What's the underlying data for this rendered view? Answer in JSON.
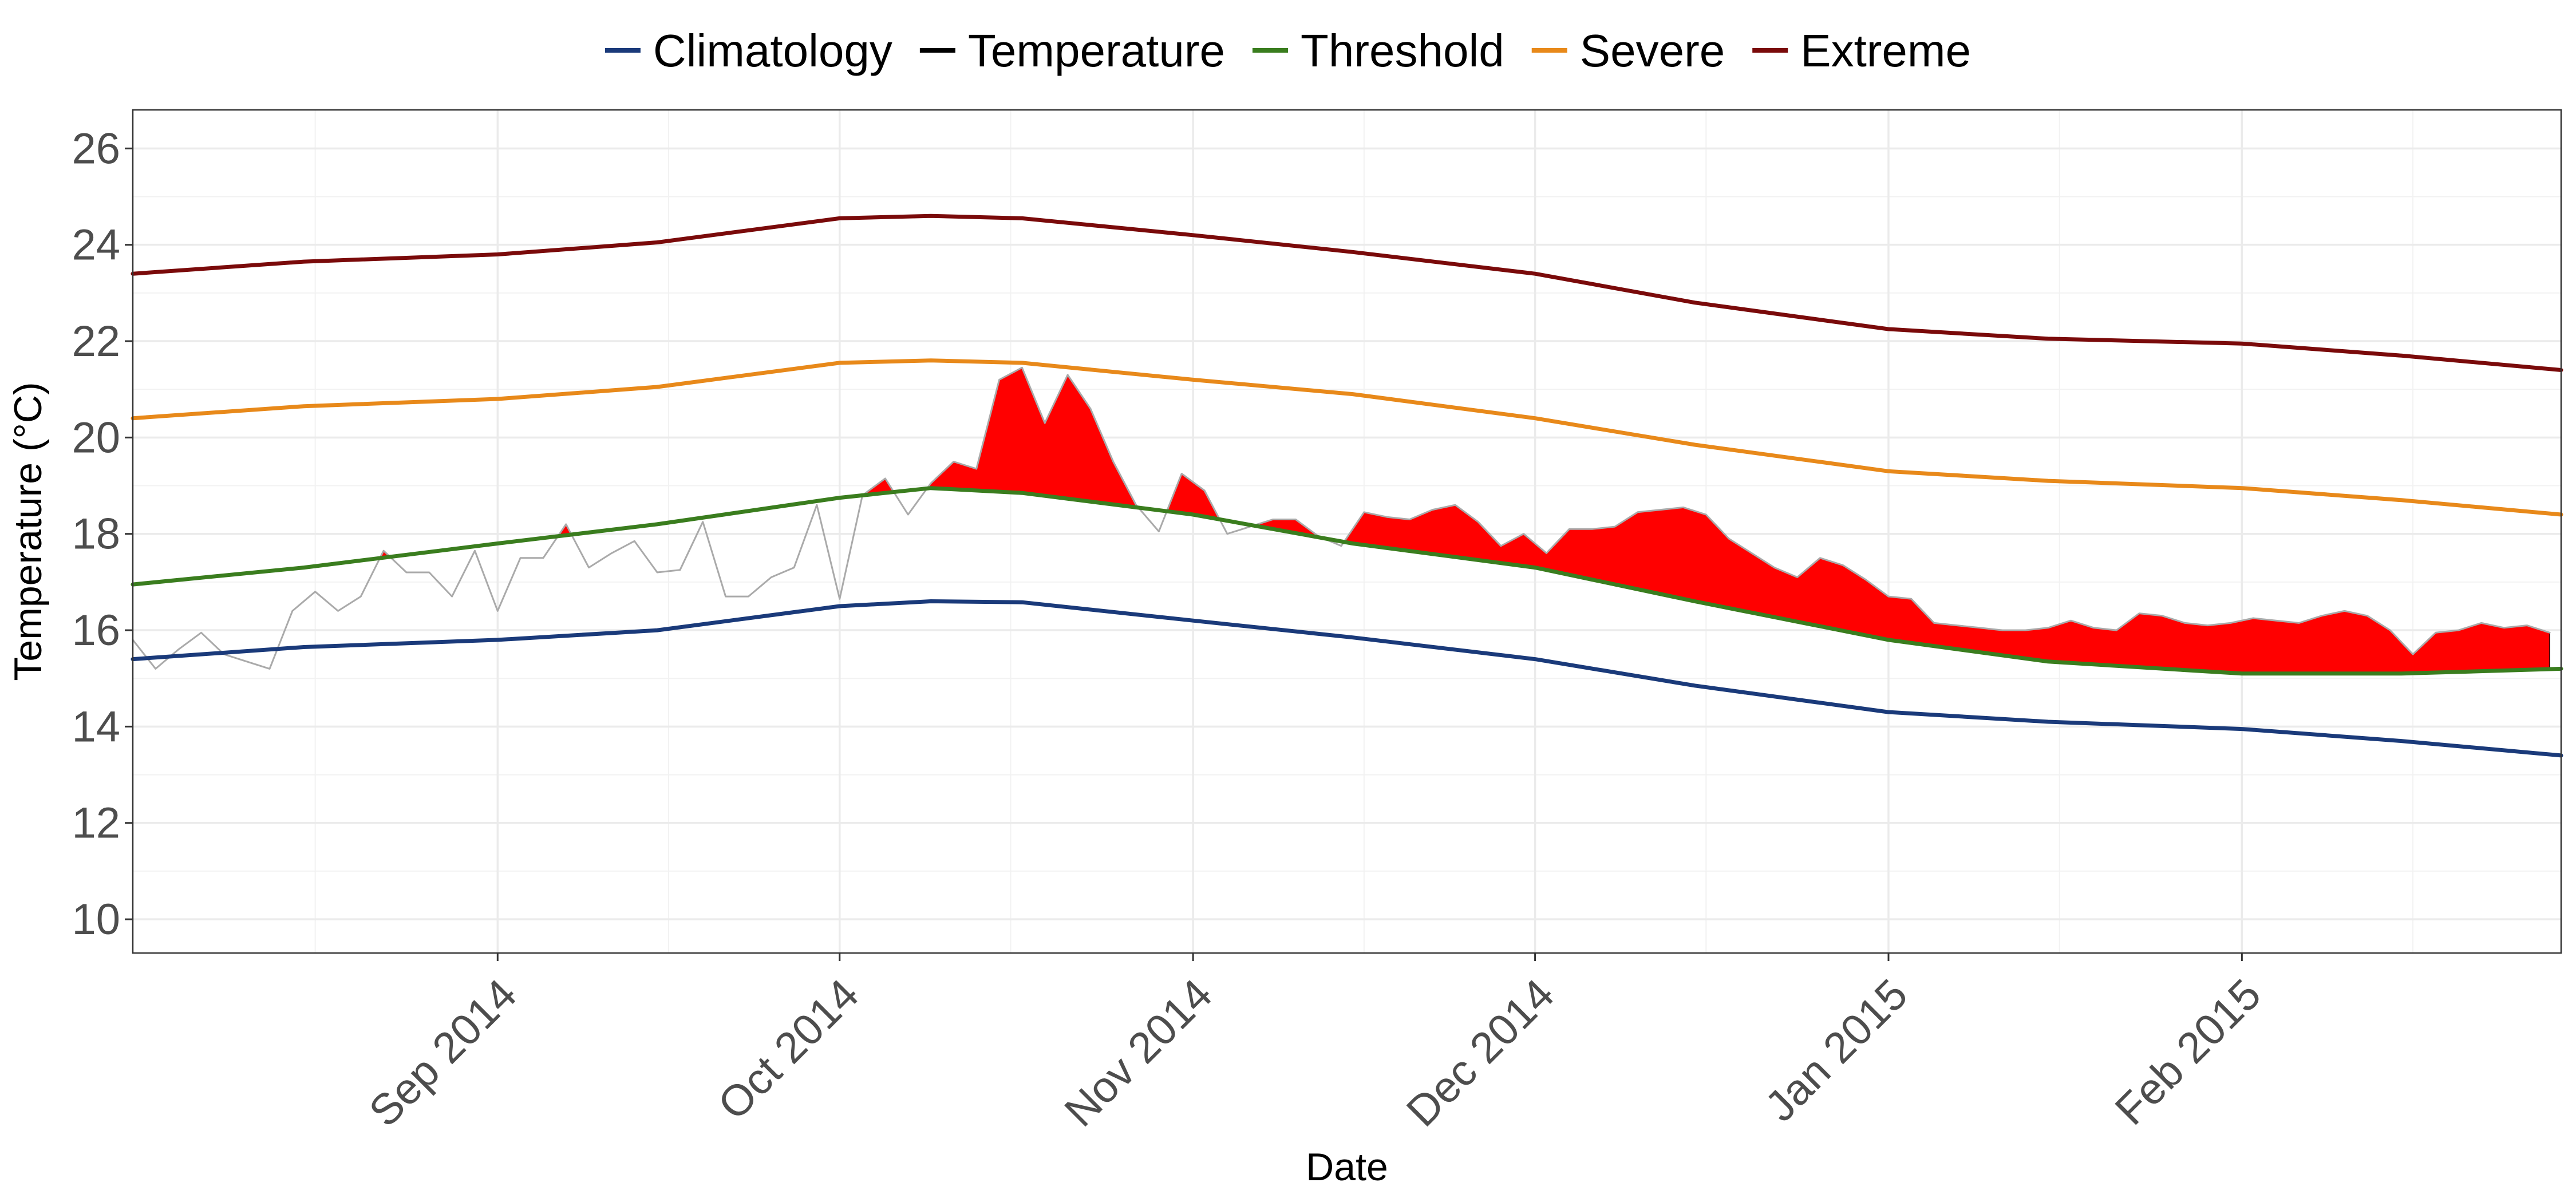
{
  "chart_data": {
    "type": "line",
    "title": "",
    "xlabel": "Date",
    "ylabel": "Temperature (°C)",
    "xlim": [
      "2014-07-31",
      "2015-03-01"
    ],
    "ylim": [
      9.3,
      26.8
    ],
    "y_ticks": [
      10,
      12,
      14,
      16,
      18,
      20,
      22,
      24,
      26
    ],
    "x_ticks": [
      {
        "date": "2014-09-01",
        "label": "Sep 2014"
      },
      {
        "date": "2014-10-01",
        "label": "Oct 2014"
      },
      {
        "date": "2014-11-01",
        "label": "Nov 2014"
      },
      {
        "date": "2014-12-01",
        "label": "Dec 2014"
      },
      {
        "date": "2015-01-01",
        "label": "Jan 2015"
      },
      {
        "date": "2015-02-01",
        "label": "Feb 2015"
      }
    ],
    "x_minor_ticks": [
      "2014-08-16",
      "2014-09-16",
      "2014-10-16",
      "2014-11-16",
      "2014-12-16",
      "2015-01-16",
      "2015-02-16"
    ],
    "grid": true,
    "legend_position": "top",
    "legend": [
      {
        "name": "Climatology",
        "color": "#1a3a7a"
      },
      {
        "name": "Temperature",
        "color": "#000000"
      },
      {
        "name": "Threshold",
        "color": "#3a7d1e"
      },
      {
        "name": "Severe",
        "color": "#e8891a"
      },
      {
        "name": "Extreme",
        "color": "#7a0a0a"
      }
    ],
    "event_fill_color": "#ff0000",
    "temperature_line_color": "#aaaaaa",
    "series": [
      {
        "name": "Climatology",
        "color": "#1a3a7a",
        "x": [
          "2014-07-31",
          "2014-08-15",
          "2014-09-01",
          "2014-09-15",
          "2014-10-01",
          "2014-10-09",
          "2014-10-17",
          "2014-11-01",
          "2014-11-15",
          "2014-12-01",
          "2014-12-15",
          "2015-01-01",
          "2015-01-15",
          "2015-02-01",
          "2015-02-15",
          "2015-03-01"
        ],
        "y": [
          15.4,
          15.65,
          15.8,
          16.0,
          16.5,
          16.6,
          16.58,
          16.2,
          15.85,
          15.4,
          14.85,
          14.3,
          14.1,
          13.95,
          13.7,
          13.4
        ]
      },
      {
        "name": "Threshold",
        "color": "#3a7d1e",
        "x": [
          "2014-07-31",
          "2014-08-15",
          "2014-09-01",
          "2014-09-15",
          "2014-10-01",
          "2014-10-09",
          "2014-10-17",
          "2014-11-01",
          "2014-11-15",
          "2014-12-01",
          "2014-12-15",
          "2015-01-01",
          "2015-01-15",
          "2015-02-01",
          "2015-02-15",
          "2015-03-01"
        ],
        "y": [
          16.95,
          17.3,
          17.8,
          18.2,
          18.75,
          18.95,
          18.85,
          18.4,
          17.8,
          17.3,
          16.6,
          15.8,
          15.35,
          15.1,
          15.1,
          15.2
        ]
      },
      {
        "name": "Severe",
        "color": "#e8891a",
        "x": [
          "2014-07-31",
          "2014-08-15",
          "2014-09-01",
          "2014-09-15",
          "2014-10-01",
          "2014-10-09",
          "2014-10-17",
          "2014-11-01",
          "2014-11-15",
          "2014-12-01",
          "2014-12-15",
          "2015-01-01",
          "2015-01-15",
          "2015-02-01",
          "2015-02-15",
          "2015-03-01"
        ],
        "y": [
          20.4,
          20.65,
          20.8,
          21.05,
          21.55,
          21.6,
          21.55,
          21.2,
          20.9,
          20.4,
          19.85,
          19.3,
          19.1,
          18.95,
          18.7,
          18.4
        ]
      },
      {
        "name": "Extreme",
        "color": "#7a0a0a",
        "x": [
          "2014-07-31",
          "2014-08-15",
          "2014-09-01",
          "2014-09-15",
          "2014-10-01",
          "2014-10-09",
          "2014-10-17",
          "2014-11-01",
          "2014-11-15",
          "2014-12-01",
          "2014-12-15",
          "2015-01-01",
          "2015-01-15",
          "2015-02-01",
          "2015-02-15",
          "2015-03-01"
        ],
        "y": [
          23.4,
          23.65,
          23.8,
          24.05,
          24.55,
          24.6,
          24.55,
          24.2,
          23.85,
          23.4,
          22.8,
          22.25,
          22.05,
          21.95,
          21.7,
          21.4
        ]
      },
      {
        "name": "Temperature",
        "color": "#aaaaaa",
        "x": [
          "2014-07-31",
          "2014-08-02",
          "2014-08-04",
          "2014-08-06",
          "2014-08-08",
          "2014-08-10",
          "2014-08-12",
          "2014-08-14",
          "2014-08-16",
          "2014-08-18",
          "2014-08-20",
          "2014-08-22",
          "2014-08-24",
          "2014-08-26",
          "2014-08-28",
          "2014-08-30",
          "2014-09-01",
          "2014-09-03",
          "2014-09-05",
          "2014-09-07",
          "2014-09-09",
          "2014-09-11",
          "2014-09-13",
          "2014-09-15",
          "2014-09-17",
          "2014-09-19",
          "2014-09-21",
          "2014-09-23",
          "2014-09-25",
          "2014-09-27",
          "2014-09-29",
          "2014-10-01",
          "2014-10-03",
          "2014-10-05",
          "2014-10-07",
          "2014-10-09",
          "2014-10-11",
          "2014-10-13",
          "2014-10-15",
          "2014-10-17",
          "2014-10-19",
          "2014-10-21",
          "2014-10-23",
          "2014-10-25",
          "2014-10-27",
          "2014-10-29",
          "2014-10-31",
          "2014-11-02",
          "2014-11-04",
          "2014-11-06",
          "2014-11-08",
          "2014-11-10",
          "2014-11-12",
          "2014-11-14",
          "2014-11-16",
          "2014-11-18",
          "2014-11-20",
          "2014-11-22",
          "2014-11-24",
          "2014-11-26",
          "2014-11-28",
          "2014-11-30",
          "2014-12-02",
          "2014-12-04",
          "2014-12-06",
          "2014-12-08",
          "2014-12-10",
          "2014-12-12",
          "2014-12-14",
          "2014-12-16",
          "2014-12-18",
          "2014-12-20",
          "2014-12-22",
          "2014-12-24",
          "2014-12-26",
          "2014-12-28",
          "2014-12-30",
          "2015-01-01",
          "2015-01-03",
          "2015-01-05",
          "2015-01-07",
          "2015-01-09",
          "2015-01-11",
          "2015-01-13",
          "2015-01-15",
          "2015-01-17",
          "2015-01-19",
          "2015-01-21",
          "2015-01-23",
          "2015-01-25",
          "2015-01-27",
          "2015-01-29",
          "2015-01-31",
          "2015-02-02",
          "2015-02-04",
          "2015-02-06",
          "2015-02-08",
          "2015-02-10",
          "2015-02-12",
          "2015-02-14",
          "2015-02-16",
          "2015-02-18",
          "2015-02-20",
          "2015-02-22",
          "2015-02-24",
          "2015-02-26",
          "2015-02-28"
        ],
        "y": [
          15.8,
          15.2,
          15.6,
          15.95,
          15.5,
          15.35,
          15.2,
          16.4,
          16.8,
          16.4,
          16.7,
          17.65,
          17.2,
          17.2,
          16.7,
          17.65,
          16.4,
          17.5,
          17.5,
          18.2,
          17.3,
          17.6,
          17.85,
          17.2,
          17.25,
          18.25,
          16.7,
          16.7,
          17.1,
          17.3,
          18.6,
          16.65,
          18.8,
          19.15,
          18.4,
          19.05,
          19.5,
          19.35,
          21.2,
          21.45,
          20.3,
          21.3,
          20.6,
          19.5,
          18.6,
          18.05,
          19.25,
          18.9,
          18.0,
          18.15,
          18.3,
          18.3,
          17.95,
          17.75,
          18.45,
          18.35,
          18.3,
          18.5,
          18.6,
          18.25,
          17.75,
          18.0,
          17.6,
          18.1,
          18.1,
          18.15,
          18.45,
          18.5,
          18.55,
          18.4,
          17.9,
          17.6,
          17.3,
          17.1,
          17.5,
          17.35,
          17.05,
          16.7,
          16.65,
          16.15,
          16.1,
          16.05,
          16.0,
          16.0,
          16.05,
          16.2,
          16.05,
          16.0,
          16.35,
          16.3,
          16.15,
          16.1,
          16.15,
          16.25,
          16.2,
          16.15,
          16.3,
          16.4,
          16.3,
          16.0,
          15.5,
          15.95,
          16.0,
          16.15,
          16.05,
          16.1,
          15.95
        ]
      }
    ]
  }
}
